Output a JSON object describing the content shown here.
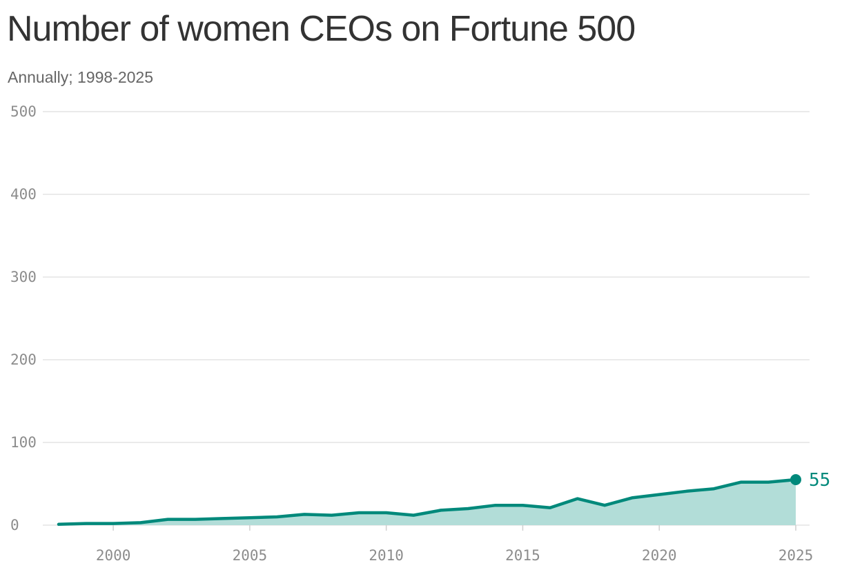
{
  "colors": {
    "line": "#00897b",
    "area": "#b2ddd8",
    "grid": "#e3e3e3"
  },
  "chart_data": {
    "type": "area",
    "title": "Number of women CEOs on Fortune 500",
    "subtitle": "Annually; 1998-2025",
    "xlabel": "",
    "ylabel": "",
    "x": [
      1998,
      1999,
      2000,
      2001,
      2002,
      2003,
      2004,
      2005,
      2006,
      2007,
      2008,
      2009,
      2010,
      2011,
      2012,
      2013,
      2014,
      2015,
      2016,
      2017,
      2018,
      2019,
      2020,
      2021,
      2022,
      2023,
      2024,
      2025
    ],
    "values": [
      1,
      2,
      2,
      3,
      7,
      7,
      8,
      9,
      10,
      13,
      12,
      15,
      15,
      12,
      18,
      20,
      24,
      24,
      21,
      32,
      24,
      33,
      37,
      41,
      44,
      52,
      52,
      55
    ],
    "xlim": [
      1998,
      2025
    ],
    "ylim": [
      0,
      500
    ],
    "x_ticks": [
      2000,
      2005,
      2010,
      2015,
      2020,
      2025
    ],
    "y_ticks": [
      0,
      100,
      200,
      300,
      400,
      500
    ],
    "grid": true,
    "end_label": "55"
  }
}
